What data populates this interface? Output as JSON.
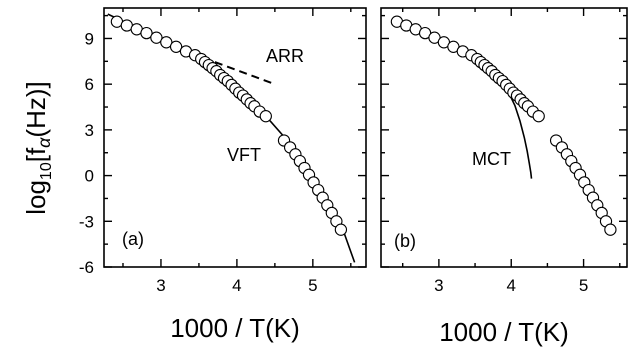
{
  "chart_data": [
    {
      "type": "scatter",
      "panel_label": "(a)",
      "xlabel": "1000 / T(K)",
      "ylabel_main": "log",
      "ylabel_sub": "10",
      "ylabel_bracket": "[f",
      "ylabel_alpha": "α",
      "ylabel_end": "(Hz)]",
      "xlim": [
        2.25,
        5.7
      ],
      "ylim": [
        -6,
        11
      ],
      "xticks": [
        "3",
        "4",
        "5"
      ],
      "yticks": [
        "-6",
        "-3",
        "0",
        "3",
        "6",
        "9"
      ],
      "grid": false,
      "series": [
        {
          "marker": "open-circle",
          "x": [
            2.42,
            2.55,
            2.68,
            2.81,
            2.94,
            3.07,
            3.2,
            3.33,
            3.45,
            3.53,
            3.58,
            3.63,
            3.68,
            3.73,
            3.78,
            3.83,
            3.88,
            3.93,
            3.98,
            4.03,
            4.08,
            4.13,
            4.18,
            4.23,
            4.3,
            4.38,
            4.62,
            4.7,
            4.77,
            4.83,
            4.89,
            4.95,
            5.01,
            5.07,
            5.13,
            5.19,
            5.25,
            5.31,
            5.37
          ],
          "y": [
            10.1,
            9.85,
            9.6,
            9.35,
            9.05,
            8.75,
            8.45,
            8.15,
            7.9,
            7.65,
            7.45,
            7.25,
            7.05,
            6.85,
            6.6,
            6.4,
            6.2,
            5.95,
            5.7,
            5.45,
            5.25,
            5.0,
            4.75,
            4.55,
            4.2,
            3.9,
            2.3,
            1.85,
            1.4,
            0.95,
            0.5,
            0.05,
            -0.45,
            -0.95,
            -1.45,
            -1.95,
            -2.45,
            -3.0,
            -3.55
          ]
        }
      ],
      "fits": [
        {
          "name": "VFT",
          "style": "solid",
          "x": [
            2.3,
            2.6,
            2.9,
            3.2,
            3.5,
            3.8,
            4.1,
            4.4,
            4.7,
            5.0,
            5.2,
            5.4,
            5.55
          ],
          "y": [
            10.6,
            9.9,
            9.1,
            8.3,
            7.5,
            6.55,
            5.25,
            3.8,
            2.1,
            0.0,
            -1.7,
            -3.6,
            -5.7
          ]
        },
        {
          "name": "ARR",
          "style": "dashed",
          "x": [
            3.55,
            4.5
          ],
          "y": [
            7.75,
            6.0
          ]
        }
      ],
      "annotations": [
        "ARR",
        "VFT"
      ]
    },
    {
      "type": "scatter",
      "panel_label": "(b)",
      "xlabel": "1000 / T(K)",
      "xlim": [
        2.2,
        5.6
      ],
      "ylim": [
        -6,
        11
      ],
      "xticks": [
        "3",
        "4",
        "5"
      ],
      "grid": false,
      "series": [
        {
          "marker": "open-circle",
          "x": [
            2.42,
            2.55,
            2.68,
            2.81,
            2.94,
            3.07,
            3.2,
            3.33,
            3.45,
            3.53,
            3.58,
            3.63,
            3.68,
            3.73,
            3.78,
            3.83,
            3.88,
            3.93,
            3.98,
            4.03,
            4.08,
            4.13,
            4.18,
            4.23,
            4.3,
            4.38,
            4.62,
            4.7,
            4.77,
            4.83,
            4.89,
            4.95,
            5.01,
            5.07,
            5.13,
            5.19,
            5.25,
            5.31,
            5.37
          ],
          "y": [
            10.1,
            9.85,
            9.6,
            9.35,
            9.05,
            8.75,
            8.45,
            8.15,
            7.9,
            7.65,
            7.45,
            7.25,
            7.05,
            6.85,
            6.6,
            6.4,
            6.2,
            5.95,
            5.7,
            5.45,
            5.25,
            5.0,
            4.75,
            4.55,
            4.2,
            3.9,
            2.3,
            1.85,
            1.4,
            0.95,
            0.5,
            0.05,
            -0.45,
            -0.95,
            -1.45,
            -1.95,
            -2.45,
            -3.0,
            -3.55
          ]
        }
      ],
      "fits": [
        {
          "name": "MCT",
          "style": "solid",
          "x": [
            3.6,
            3.8,
            3.95,
            4.05,
            4.12,
            4.18,
            4.22,
            4.25,
            4.27,
            4.28
          ],
          "y": [
            7.5,
            6.6,
            5.6,
            4.6,
            3.6,
            2.5,
            1.6,
            0.8,
            0.2,
            -0.2
          ]
        }
      ],
      "annotations": [
        "MCT"
      ]
    }
  ]
}
